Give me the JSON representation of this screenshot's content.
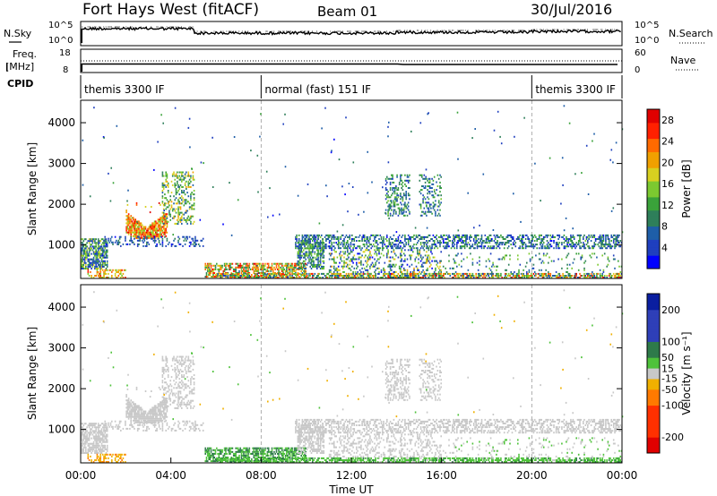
{
  "header": {
    "station": "Fort Hays West (fitACF)",
    "beam": "Beam 01",
    "date": "30/Jul/2016"
  },
  "chart_data": [
    {
      "type": "line",
      "name_label": "N.Sky",
      "right_label": "N.Search",
      "y_ticks_left": [
        "10^5",
        "10^0"
      ],
      "y_ticks_right": [
        "10^5",
        "10^0"
      ]
    },
    {
      "type": "line",
      "freq_label": [
        "Freq.",
        "[MHz]"
      ],
      "right_label": "Nave",
      "y_ticks_left": [
        "18",
        "8"
      ],
      "y_ticks_right": [
        "60",
        "0"
      ]
    },
    {
      "type": "table",
      "label": "CPID",
      "segments": [
        {
          "label": "themis 3300 IF",
          "start_h": 0,
          "end_h": 8
        },
        {
          "label": "normal (fast) 151 IF",
          "start_h": 8,
          "end_h": 20
        },
        {
          "label": "themis 3300 IF",
          "start_h": 20,
          "end_h": 24
        }
      ]
    },
    {
      "type": "heatmap",
      "quantity": "power",
      "ylabel": "Slant Range [km]",
      "yticks": [
        "1000",
        "2000",
        "3000",
        "4000"
      ],
      "ylim": [
        180,
        4550
      ],
      "xlim": [
        0,
        24
      ],
      "colorbar": {
        "label": "Power [dB]",
        "ticks": [
          "4",
          "8",
          "12",
          "16",
          "20",
          "24",
          "28"
        ],
        "range": [
          0,
          30
        ]
      },
      "guides_h": [
        8,
        20
      ],
      "blobs": [
        {
          "t0": 0.0,
          "t1": 1.2,
          "r0": 400,
          "r1": 1150,
          "v0": 2,
          "v1": 18,
          "d": 0.65
        },
        {
          "t0": 0.3,
          "t1": 2.0,
          "r0": 180,
          "r1": 400,
          "v0": 14,
          "v1": 26,
          "d": 0.45
        },
        {
          "t0": 2.0,
          "t1": 3.8,
          "r0": 1150,
          "r1": 2050,
          "v0": 14,
          "v1": 29,
          "d": 0.8
        },
        {
          "t0": 3.6,
          "t1": 5.0,
          "r0": 1500,
          "r1": 2800,
          "v0": 6,
          "v1": 20,
          "d": 0.35
        },
        {
          "t0": 1.0,
          "t1": 5.5,
          "r0": 950,
          "r1": 1200,
          "v0": 2,
          "v1": 10,
          "d": 0.25
        },
        {
          "t0": 5.5,
          "t1": 10.0,
          "r0": 200,
          "r1": 560,
          "v0": 8,
          "v1": 28,
          "d": 0.6
        },
        {
          "t0": 9.5,
          "t1": 24.0,
          "r0": 900,
          "r1": 1250,
          "v0": 2,
          "v1": 14,
          "d": 0.45
        },
        {
          "t0": 9.6,
          "t1": 10.8,
          "r0": 400,
          "r1": 1150,
          "v0": 4,
          "v1": 16,
          "d": 0.55
        },
        {
          "t0": 11.0,
          "t1": 16.0,
          "r0": 180,
          "r1": 900,
          "v0": 2,
          "v1": 20,
          "d": 0.28
        },
        {
          "t0": 13.5,
          "t1": 14.6,
          "r0": 1700,
          "r1": 2700,
          "v0": 4,
          "v1": 14,
          "d": 0.35
        },
        {
          "t0": 15.0,
          "t1": 16.0,
          "r0": 1700,
          "r1": 2700,
          "v0": 4,
          "v1": 14,
          "d": 0.25
        },
        {
          "t0": 6.0,
          "t1": 24.0,
          "r0": 180,
          "r1": 300,
          "v0": 4,
          "v1": 28,
          "d": 0.55
        },
        {
          "t0": 16.0,
          "t1": 24.0,
          "r0": 180,
          "r1": 800,
          "v0": 4,
          "v1": 16,
          "d": 0.08
        }
      ]
    },
    {
      "type": "heatmap",
      "quantity": "velocity",
      "xlabel": "Time UT",
      "ylabel": "Slant Range [km]",
      "xticks": [
        "00:00",
        "04:00",
        "08:00",
        "12:00",
        "16:00",
        "20:00",
        "00:00"
      ],
      "yticks": [
        "1000",
        "2000",
        "3000",
        "4000"
      ],
      "ylim": [
        180,
        4550
      ],
      "xlim": [
        0,
        24
      ],
      "colorbar": {
        "label": "Velocity [m s⁻¹]",
        "ticks": [
          "200",
          "100",
          "50",
          "15",
          "-15",
          "-50",
          "-100",
          "-200"
        ],
        "range": [
          -250,
          250
        ]
      },
      "guides_h": [
        8,
        20
      ],
      "blobs": [
        {
          "t0": 0.0,
          "t1": 1.2,
          "r0": 400,
          "r1": 1150,
          "v0": -14,
          "v1": 14,
          "d": 0.65
        },
        {
          "t0": 0.3,
          "t1": 2.0,
          "r0": 180,
          "r1": 400,
          "v0": -60,
          "v1": -20,
          "d": 0.45
        },
        {
          "t0": 2.0,
          "t1": 3.8,
          "r0": 1150,
          "r1": 2050,
          "v0": -14,
          "v1": 14,
          "d": 0.8
        },
        {
          "t0": 3.6,
          "t1": 5.0,
          "r0": 1500,
          "r1": 2800,
          "v0": -14,
          "v1": 14,
          "d": 0.35
        },
        {
          "t0": 1.0,
          "t1": 5.5,
          "r0": 950,
          "r1": 1200,
          "v0": -14,
          "v1": 14,
          "d": 0.25
        },
        {
          "t0": 5.5,
          "t1": 10.0,
          "r0": 200,
          "r1": 560,
          "v0": 15,
          "v1": 90,
          "d": 0.6
        },
        {
          "t0": 9.5,
          "t1": 24.0,
          "r0": 900,
          "r1": 1250,
          "v0": -14,
          "v1": 14,
          "d": 0.45
        },
        {
          "t0": 9.6,
          "t1": 10.8,
          "r0": 400,
          "r1": 1150,
          "v0": -14,
          "v1": 14,
          "d": 0.55
        },
        {
          "t0": 11.0,
          "t1": 16.0,
          "r0": 180,
          "r1": 900,
          "v0": -14,
          "v1": 14,
          "d": 0.28
        },
        {
          "t0": 13.5,
          "t1": 14.6,
          "r0": 1700,
          "r1": 2700,
          "v0": -14,
          "v1": 14,
          "d": 0.35
        },
        {
          "t0": 15.0,
          "t1": 16.0,
          "r0": 1700,
          "r1": 2700,
          "v0": -14,
          "v1": 14,
          "d": 0.25
        },
        {
          "t0": 6.0,
          "t1": 24.0,
          "r0": 180,
          "r1": 300,
          "v0": 15,
          "v1": 60,
          "d": 0.55
        },
        {
          "t0": 16.0,
          "t1": 24.0,
          "r0": 180,
          "r1": 800,
          "v0": -14,
          "v1": 30,
          "d": 0.08
        }
      ]
    }
  ]
}
